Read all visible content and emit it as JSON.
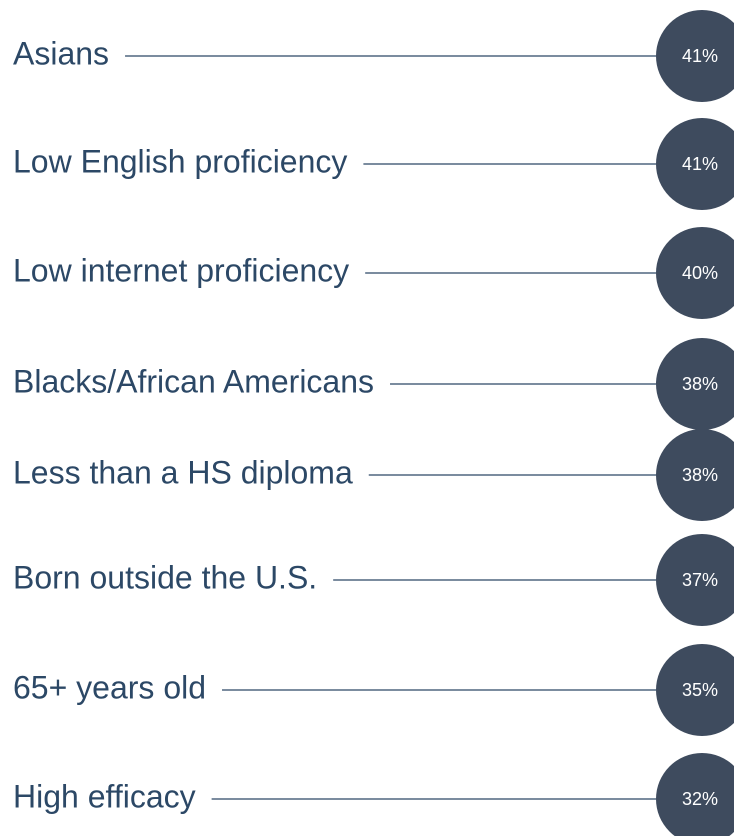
{
  "chart_data": {
    "type": "dot",
    "categories": [
      "Asians",
      "Low English proficiency",
      "Low internet proficiency",
      "Blacks/African Americans",
      "Less than a HS diploma",
      "Born outside the U.S.",
      "65+ years old",
      "High efficacy"
    ],
    "values": [
      41,
      41,
      40,
      38,
      38,
      37,
      35,
      32
    ],
    "value_labels": [
      "41%",
      "41%",
      "40%",
      "38%",
      "38%",
      "37%",
      "35%",
      "32%"
    ],
    "color": "#3e4b5e"
  }
}
